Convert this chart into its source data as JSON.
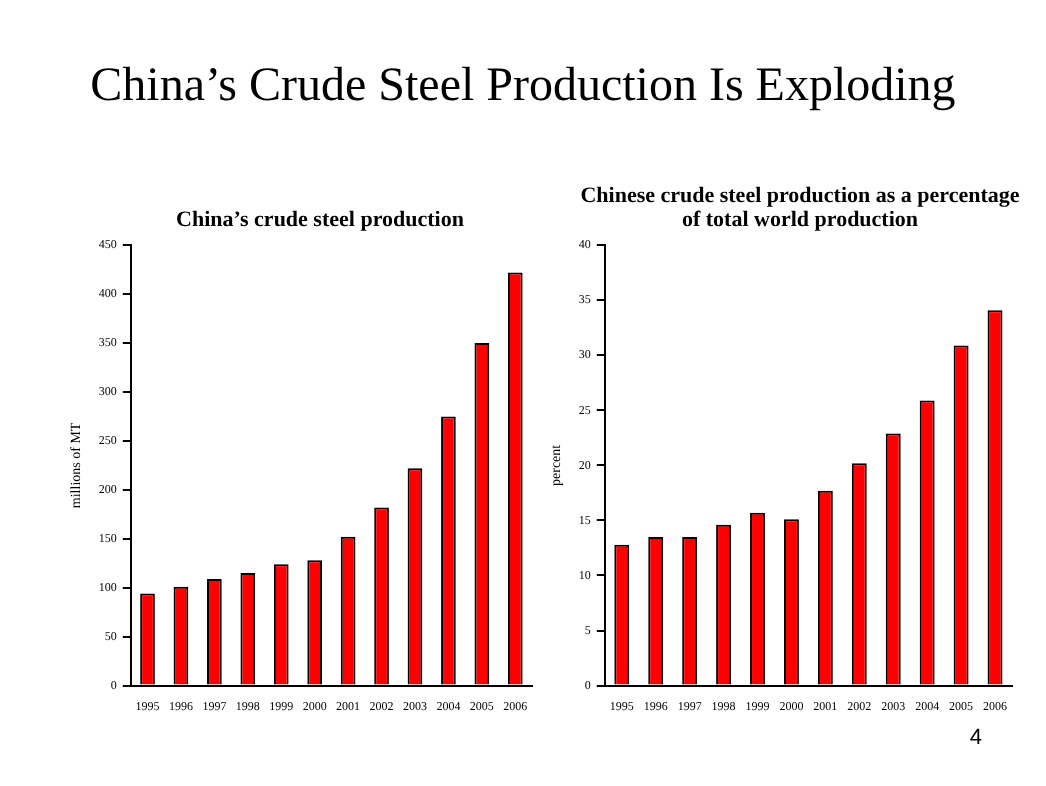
{
  "chart_data": [
    {
      "type": "bar",
      "title": "China’s crude steel production",
      "ylabel": "millions of MT",
      "annotations": [
        "China’s Crude Steel Production Is Exploding"
      ],
      "categories": [
        "1995",
        "1996",
        "1997",
        "1998",
        "1999",
        "2000",
        "2001",
        "2002",
        "2003",
        "2004",
        "2005",
        "2006"
      ],
      "values": [
        94,
        101,
        109,
        115,
        124,
        128,
        152,
        182,
        222,
        275,
        350,
        422
      ],
      "color": "#ff0000",
      "ylim": [
        0,
        450
      ],
      "yticks": [
        0,
        50,
        100,
        150,
        200,
        250,
        300,
        350,
        400,
        450
      ],
      "grid": false,
      "legend": false
    },
    {
      "type": "bar",
      "title": "Chinese crude steel production as a percentage of total world production",
      "ylabel": "percent",
      "annotations": [
        "4"
      ],
      "categories": [
        "1995",
        "1996",
        "1997",
        "1998",
        "1999",
        "2000",
        "2001",
        "2002",
        "2003",
        "2004",
        "2005",
        "2006"
      ],
      "values": [
        12.8,
        13.5,
        13.5,
        14.6,
        15.7,
        15.1,
        17.7,
        20.2,
        22.9,
        25.9,
        30.9,
        34.1
      ],
      "color": "#ff0000",
      "ylim": [
        0,
        40
      ],
      "yticks": [
        0,
        5,
        10,
        15,
        20,
        25,
        30,
        35,
        40
      ],
      "grid": false,
      "legend": false
    }
  ]
}
